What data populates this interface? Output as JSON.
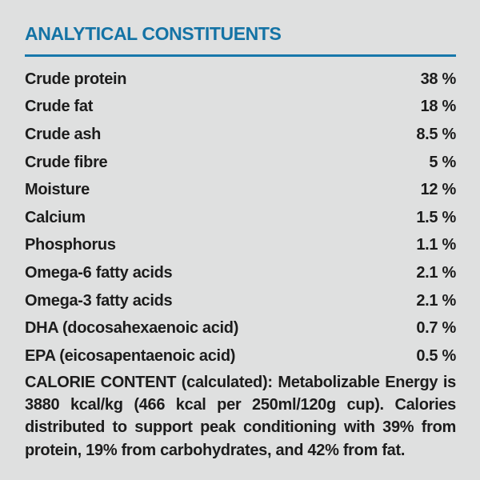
{
  "page": {
    "background_color": "#dfe0e0",
    "accent_color": "#1473a5",
    "text_color": "#1c1c1c"
  },
  "section": {
    "title": "ANALYTICAL CONSTITUENTS",
    "rows": [
      {
        "label": "Crude protein",
        "value": "38 %"
      },
      {
        "label": "Crude fat",
        "value": "18 %"
      },
      {
        "label": "Crude ash",
        "value": "8.5 %"
      },
      {
        "label": "Crude fibre",
        "value": "5 %"
      },
      {
        "label": "Moisture",
        "value": "12 %"
      },
      {
        "label": "Calcium",
        "value": "1.5 %"
      },
      {
        "label": "Phosphorus",
        "value": "1.1 %"
      },
      {
        "label": "Omega-6 fatty acids",
        "value": "2.1 %"
      },
      {
        "label": "Omega-3 fatty acids",
        "value": "2.1 %"
      },
      {
        "label": "DHA (docosahexaenoic acid)",
        "value": "0.7 %"
      },
      {
        "label": "EPA (eicosapentaenoic acid)",
        "value": "0.5 %"
      }
    ],
    "calorie_paragraph": "CALORIE CONTENT (calculated): Metabolizable Energy is 3880 kcal/kg (466 kcal per 250ml/120g cup). Calories distributed to support peak conditioning with 39% from protein, 19% from carbohydrates, and 42% from fat."
  }
}
